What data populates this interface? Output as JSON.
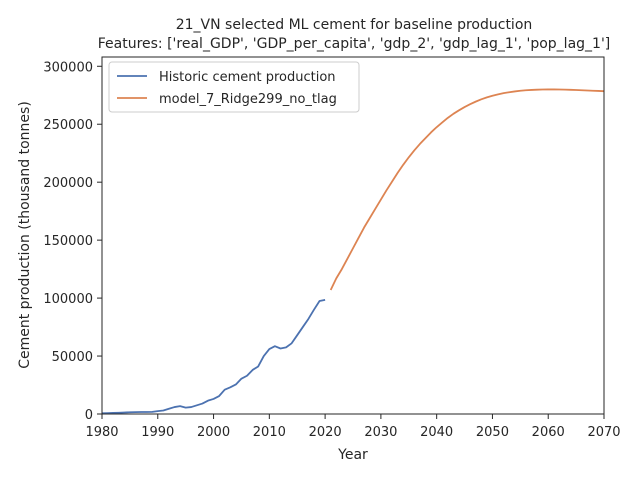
{
  "chart_data": {
    "type": "line",
    "title": "21_VN selected ML cement for baseline production",
    "subtitle": "Features: ['real_GDP', 'GDP_per_capita', 'gdp_2', 'gdp_lag_1', 'pop_lag_1']",
    "xlabel": "Year",
    "ylabel": "Cement production (thousand tonnes)",
    "xlim": [
      1980,
      2070
    ],
    "ylim": [
      0,
      308000
    ],
    "xticks": [
      "1980",
      "1990",
      "2000",
      "2010",
      "2020",
      "2030",
      "2040",
      "2050",
      "2060",
      "2070"
    ],
    "yticks": [
      "0",
      "50000",
      "100000",
      "150000",
      "200000",
      "250000",
      "300000"
    ],
    "grid": false,
    "legend_position": "top-left",
    "series": [
      {
        "name": "Historic cement production",
        "color": "#4c72b0",
        "x": [
          1980,
          1981,
          1982,
          1983,
          1984,
          1985,
          1986,
          1987,
          1988,
          1989,
          1990,
          1991,
          1992,
          1993,
          1994,
          1995,
          1996,
          1997,
          1998,
          1999,
          2000,
          2001,
          2002,
          2003,
          2004,
          2005,
          2006,
          2007,
          2008,
          2009,
          2010,
          2011,
          2012,
          2013,
          2014,
          2015,
          2016,
          2017,
          2018,
          2019,
          2020
        ],
        "values": [
          600,
          700,
          900,
          1100,
          1300,
          1500,
          1600,
          1700,
          1700,
          1800,
          2500,
          3000,
          4500,
          6000,
          6800,
          5500,
          6000,
          7500,
          9000,
          11500,
          13000,
          15500,
          21000,
          23000,
          25500,
          30500,
          33000,
          38000,
          41000,
          50000,
          56000,
          58500,
          56500,
          57500,
          61000,
          68000,
          75000,
          82000,
          90000,
          97500,
          98500
        ]
      },
      {
        "name": "model_7_Ridge299_no_tlag",
        "color": "#dd8452",
        "x": [
          2021,
          2022,
          2023,
          2024,
          2025,
          2026,
          2027,
          2028,
          2029,
          2030,
          2031,
          2032,
          2033,
          2034,
          2035,
          2036,
          2037,
          2038,
          2039,
          2040,
          2041,
          2042,
          2043,
          2044,
          2045,
          2046,
          2047,
          2048,
          2049,
          2050,
          2051,
          2052,
          2053,
          2054,
          2055,
          2056,
          2057,
          2058,
          2059,
          2060,
          2061,
          2062,
          2063,
          2064,
          2065,
          2066,
          2067,
          2068,
          2069,
          2070
        ],
        "values": [
          107000,
          117000,
          125000,
          134000,
          143000,
          152000,
          161000,
          169000,
          177000,
          185000,
          193000,
          200500,
          208000,
          215000,
          221500,
          227500,
          233000,
          238000,
          243000,
          247500,
          251500,
          255500,
          259000,
          262000,
          264800,
          267300,
          269500,
          271500,
          273200,
          274600,
          275800,
          276800,
          277600,
          278300,
          278900,
          279300,
          279600,
          279800,
          279950,
          280000,
          280000,
          279950,
          279850,
          279700,
          279500,
          279300,
          279100,
          278900,
          278700,
          278500
        ]
      }
    ]
  }
}
